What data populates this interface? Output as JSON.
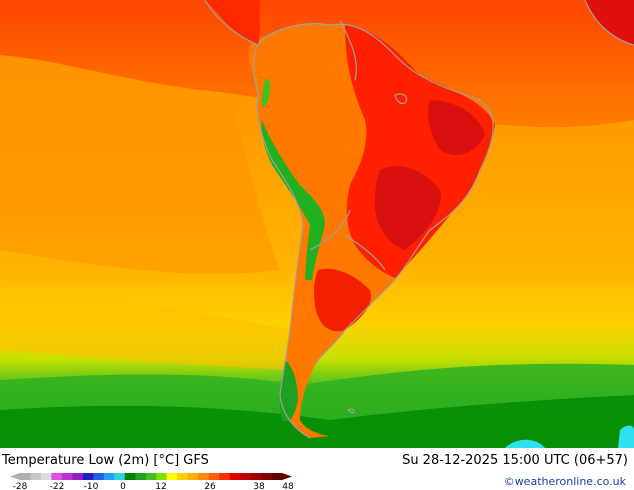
{
  "footer": {
    "title": "Temperature Low (2m) [°C] GFS",
    "datetime": "Su 28-12-2025 15:00 UTC (06+57)",
    "credit": "©weatheronline.co.uk"
  },
  "colorbar": {
    "tick_labels": [
      "-28",
      "-22",
      "-10",
      "0",
      "12",
      "26",
      "38",
      "48"
    ],
    "colors": [
      "#b0b0b0",
      "#c8c8c8",
      "#dcdcdc",
      "#e050e0",
      "#c030d0",
      "#9020c0",
      "#2020c0",
      "#2060e0",
      "#20a0f0",
      "#30d0e0",
      "#008000",
      "#20a020",
      "#40c020",
      "#80e000",
      "#ffff00",
      "#ffd000",
      "#ffb000",
      "#ff8c00",
      "#ff6000",
      "#ff3000",
      "#e00000",
      "#c00000",
      "#a00000",
      "#800000",
      "#600000"
    ]
  },
  "map": {
    "colors": {
      "ocean_warm": "#ff9900",
      "ocean_mid": "#ffb000",
      "hot": "#ff2a00",
      "very_hot": "#e01010",
      "cool_green": "#20b020",
      "cold_green": "#008a00",
      "cyan": "#30e0f0",
      "coast": "#a0a0a0"
    }
  }
}
